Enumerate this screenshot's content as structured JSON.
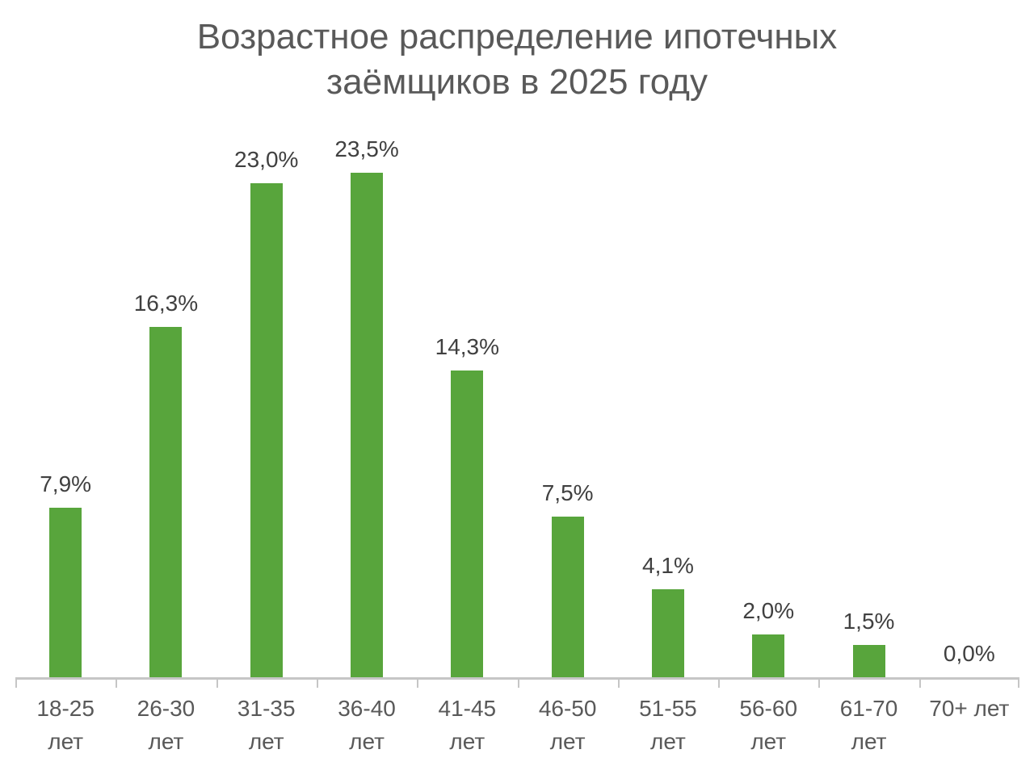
{
  "chart_data": {
    "type": "bar",
    "title": "Возрастное распределение ипотечных заёмщиков в 2025 году",
    "categories": [
      "18-25 лет",
      "26-30 лет",
      "31-35 лет",
      "36-40 лет",
      "41-45 лет",
      "46-50 лет",
      "51-55 лет",
      "56-60 лет",
      "61-70 лет",
      "70+ лет"
    ],
    "values": [
      7.9,
      16.3,
      23.0,
      23.5,
      14.3,
      7.5,
      4.1,
      2.0,
      1.5,
      0.0
    ],
    "value_labels": [
      "7,9%",
      "16,3%",
      "23,0%",
      "23,5%",
      "14,3%",
      "7,5%",
      "4,1%",
      "2,0%",
      "1,5%",
      "0,0%"
    ],
    "xlabel": "",
    "ylabel": "",
    "ylim": [
      0,
      25
    ],
    "grid": false,
    "legend": false,
    "bar_color": "#58A53C",
    "title_color": "#595959",
    "value_label_color": "#404040",
    "axis_label_color": "#595959",
    "axis_line_color": "#C6C6C6"
  }
}
